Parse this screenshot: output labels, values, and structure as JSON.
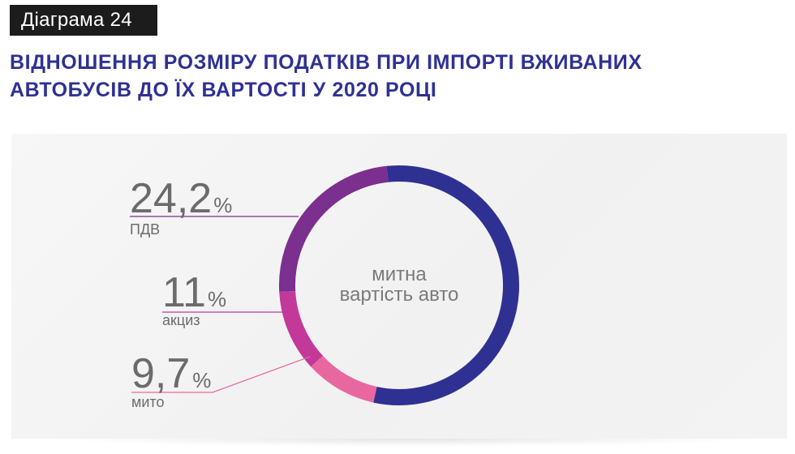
{
  "header": {
    "badge": "Діаграма 24",
    "title_line1": "ВІДНОШЕННЯ РОЗМІРУ ПОДАТКІВ ПРИ ІМПОРТІ ВЖИВАНИХ",
    "title_line2": "АВТОБУСІВ ДО ЇХ ВАРТОСТІ У 2020 РОЦІ"
  },
  "chart_data": {
    "type": "pie",
    "variant": "donut",
    "center_label": [
      "митна",
      "вартість авто"
    ],
    "total": 100,
    "slices": [
      {
        "label": "ПДВ",
        "value_text": "24,2",
        "unit": "%",
        "value": 24.2,
        "color": "#7b2f8e"
      },
      {
        "label": "акциз",
        "value_text": "11",
        "unit": "%",
        "value": 11,
        "color": "#c2399a"
      },
      {
        "label": "мито",
        "value_text": "9,7",
        "unit": "%",
        "value": 9.7,
        "color": "#e9679f"
      }
    ],
    "base_color": "#2e3192"
  }
}
